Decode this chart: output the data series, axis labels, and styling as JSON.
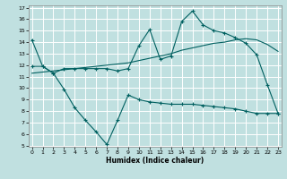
{
  "xlabel": "Humidex (Indice chaleur)",
  "bg_color": "#c0e0e0",
  "grid_color": "#ffffff",
  "line_color": "#006060",
  "x_ticks": [
    0,
    1,
    2,
    3,
    4,
    5,
    6,
    7,
    8,
    9,
    10,
    11,
    12,
    13,
    14,
    15,
    16,
    17,
    18,
    19,
    20,
    21,
    22,
    23
  ],
  "ylim": [
    5,
    17
  ],
  "xlim": [
    -0.3,
    23.3
  ],
  "yticks": [
    5,
    6,
    7,
    8,
    9,
    10,
    11,
    12,
    13,
    14,
    15,
    16,
    17
  ],
  "curve1_x": [
    0,
    1,
    2,
    3,
    4,
    5,
    6,
    7,
    8,
    9,
    10,
    11,
    12,
    13,
    14,
    15,
    16,
    17,
    18,
    19,
    20,
    21,
    22,
    23
  ],
  "curve1_y": [
    14.2,
    11.9,
    11.3,
    11.7,
    11.7,
    11.7,
    11.7,
    11.7,
    11.5,
    11.7,
    13.7,
    15.1,
    12.5,
    12.8,
    15.8,
    16.7,
    15.5,
    15.0,
    14.8,
    14.4,
    13.9,
    12.9,
    10.3,
    7.8
  ],
  "curve2_x": [
    0,
    1,
    2,
    3,
    4,
    5,
    6,
    7,
    8,
    9,
    10,
    11,
    12,
    13,
    14,
    15,
    16,
    17,
    18,
    19,
    20,
    21,
    22,
    23
  ],
  "curve2_y": [
    11.3,
    11.4,
    11.5,
    11.6,
    11.7,
    11.8,
    11.9,
    12.0,
    12.1,
    12.2,
    12.4,
    12.6,
    12.8,
    13.0,
    13.3,
    13.5,
    13.7,
    13.9,
    14.0,
    14.2,
    14.3,
    14.2,
    13.8,
    13.2
  ],
  "curve3_x": [
    0,
    1,
    2,
    3,
    4,
    5,
    6,
    7,
    8,
    9,
    10,
    11,
    12,
    13,
    14,
    15,
    16,
    17,
    18,
    19,
    20,
    21,
    22,
    23
  ],
  "curve3_y": [
    11.9,
    11.9,
    11.3,
    9.9,
    8.3,
    7.2,
    6.2,
    5.1,
    7.2,
    9.4,
    9.0,
    8.8,
    8.7,
    8.6,
    8.6,
    8.6,
    8.5,
    8.4,
    8.3,
    8.2,
    8.0,
    7.8,
    7.8,
    7.8
  ]
}
